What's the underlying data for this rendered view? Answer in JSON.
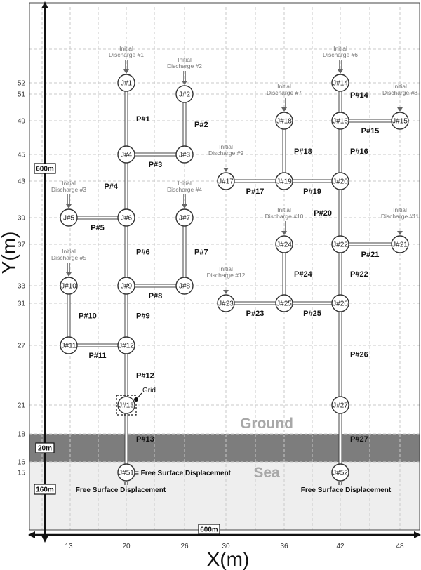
{
  "axes": {
    "x_title": "X(m)",
    "y_title": "Y(m)",
    "x_ticks": [
      13,
      20,
      26,
      30,
      36,
      42,
      48
    ],
    "y_ticks": [
      15,
      16,
      18,
      21,
      27,
      31,
      33,
      37,
      39,
      43,
      45,
      49,
      51,
      52
    ],
    "x_scale_label": "600m",
    "y_scale_label": "600m",
    "ground_scale_label": "20m",
    "sea_scale_label": "160m"
  },
  "zones": {
    "ground_label": "Ground",
    "sea_label": "Sea"
  },
  "junctions": [
    {
      "id": "J#1",
      "x": 20,
      "y": 52
    },
    {
      "id": "J#2",
      "x": 26,
      "y": 51
    },
    {
      "id": "J#3",
      "x": 26,
      "y": 45
    },
    {
      "id": "J#4",
      "x": 20,
      "y": 45
    },
    {
      "id": "J#5",
      "x": 13,
      "y": 39
    },
    {
      "id": "J#6",
      "x": 20,
      "y": 39
    },
    {
      "id": "J#7",
      "x": 26,
      "y": 39
    },
    {
      "id": "J#8",
      "x": 26,
      "y": 33
    },
    {
      "id": "J#9",
      "x": 20,
      "y": 33
    },
    {
      "id": "J#10",
      "x": 13,
      "y": 33
    },
    {
      "id": "J#11",
      "x": 13,
      "y": 27
    },
    {
      "id": "J#12",
      "x": 20,
      "y": 27
    },
    {
      "id": "J#13",
      "x": 20,
      "y": 21
    },
    {
      "id": "J#51",
      "x": 20,
      "y": 15
    },
    {
      "id": "J#14",
      "x": 42,
      "y": 52
    },
    {
      "id": "J#15",
      "x": 48,
      "y": 49
    },
    {
      "id": "J#16",
      "x": 42,
      "y": 49
    },
    {
      "id": "J#17",
      "x": 30,
      "y": 43
    },
    {
      "id": "J#18",
      "x": 36,
      "y": 49
    },
    {
      "id": "J#19",
      "x": 36,
      "y": 43
    },
    {
      "id": "J#20",
      "x": 42,
      "y": 43
    },
    {
      "id": "J#21",
      "x": 48,
      "y": 37
    },
    {
      "id": "J#22",
      "x": 42,
      "y": 37
    },
    {
      "id": "J#23",
      "x": 30,
      "y": 31
    },
    {
      "id": "J#24",
      "x": 36,
      "y": 37
    },
    {
      "id": "J#25",
      "x": 36,
      "y": 31
    },
    {
      "id": "J#26",
      "x": 42,
      "y": 31
    },
    {
      "id": "J#27",
      "x": 42,
      "y": 21
    },
    {
      "id": "J#52",
      "x": 42,
      "y": 15
    }
  ],
  "pipes": [
    {
      "id": "P#1",
      "from": "J#1",
      "to": "J#4"
    },
    {
      "id": "P#2",
      "from": "J#2",
      "to": "J#3"
    },
    {
      "id": "P#3",
      "from": "J#3",
      "to": "J#4"
    },
    {
      "id": "P#4",
      "from": "J#4",
      "to": "J#6"
    },
    {
      "id": "P#5",
      "from": "J#5",
      "to": "J#6"
    },
    {
      "id": "P#6",
      "from": "J#6",
      "to": "J#9"
    },
    {
      "id": "P#7",
      "from": "J#7",
      "to": "J#8"
    },
    {
      "id": "P#8",
      "from": "J#8",
      "to": "J#9"
    },
    {
      "id": "P#9",
      "from": "J#9",
      "to": "J#12"
    },
    {
      "id": "P#10",
      "from": "J#10",
      "to": "J#11"
    },
    {
      "id": "P#11",
      "from": "J#11",
      "to": "J#12"
    },
    {
      "id": "P#12",
      "from": "J#12",
      "to": "J#13"
    },
    {
      "id": "P#13",
      "from": "J#13",
      "to": "J#51"
    },
    {
      "id": "P#14",
      "from": "J#14",
      "to": "J#16"
    },
    {
      "id": "P#15",
      "from": "J#15",
      "to": "J#16"
    },
    {
      "id": "P#16",
      "from": "J#16",
      "to": "J#20"
    },
    {
      "id": "P#17",
      "from": "J#17",
      "to": "J#19"
    },
    {
      "id": "P#18",
      "from": "J#18",
      "to": "J#19"
    },
    {
      "id": "P#19",
      "from": "J#19",
      "to": "J#20"
    },
    {
      "id": "P#20",
      "from": "J#20",
      "to": "J#22"
    },
    {
      "id": "P#21",
      "from": "J#21",
      "to": "J#22"
    },
    {
      "id": "P#22",
      "from": "J#22",
      "to": "J#26"
    },
    {
      "id": "P#23",
      "from": "J#23",
      "to": "J#25"
    },
    {
      "id": "P#24",
      "from": "J#24",
      "to": "J#25"
    },
    {
      "id": "P#25",
      "from": "J#25",
      "to": "J#26"
    },
    {
      "id": "P#26",
      "from": "J#26",
      "to": "J#27"
    },
    {
      "id": "P#27",
      "from": "J#27",
      "to": "J#52"
    }
  ],
  "discharges": [
    {
      "label_line1": "Initial",
      "label_line2": "Discharge #1",
      "target": "J#1"
    },
    {
      "label_line1": "Initial",
      "label_line2": "Discharge #2",
      "target": "J#2"
    },
    {
      "label_line1": "Initial",
      "label_line2": "Discharge #3",
      "target": "J#5"
    },
    {
      "label_line1": "Initial",
      "label_line2": "Discharge #4",
      "target": "J#7"
    },
    {
      "label_line1": "Initial",
      "label_line2": "Discharge #5",
      "target": "J#10"
    },
    {
      "label_line1": "Initial",
      "label_line2": "Discharge #6",
      "target": "J#14"
    },
    {
      "label_line1": "Initial",
      "label_line2": "Discharge #7",
      "target": "J#18"
    },
    {
      "label_line1": "Initial",
      "label_line2": "Discharge #8",
      "target": "J#15"
    },
    {
      "label_line1": "Initial",
      "label_line2": "Discharge #9",
      "target": "J#17"
    },
    {
      "label_line1": "Initial",
      "label_line2": "Discharge #10",
      "target": "J#24"
    },
    {
      "label_line1": "Initial",
      "label_line2": "Discharge #11",
      "target": "J#21"
    },
    {
      "label_line1": "Initial",
      "label_line2": "Discharge #12",
      "target": "J#23"
    }
  ],
  "annotations": {
    "grid_label": "Grid",
    "fsd_inline": "= Free Surface Displacement",
    "fsd_left": "Free Surface Displacement",
    "fsd_right": "Free Surface Displacement"
  },
  "colors": {
    "ground_band": "#7d7d7d",
    "sea_band": "#eeeeee",
    "grid": "#c9c9c9"
  }
}
